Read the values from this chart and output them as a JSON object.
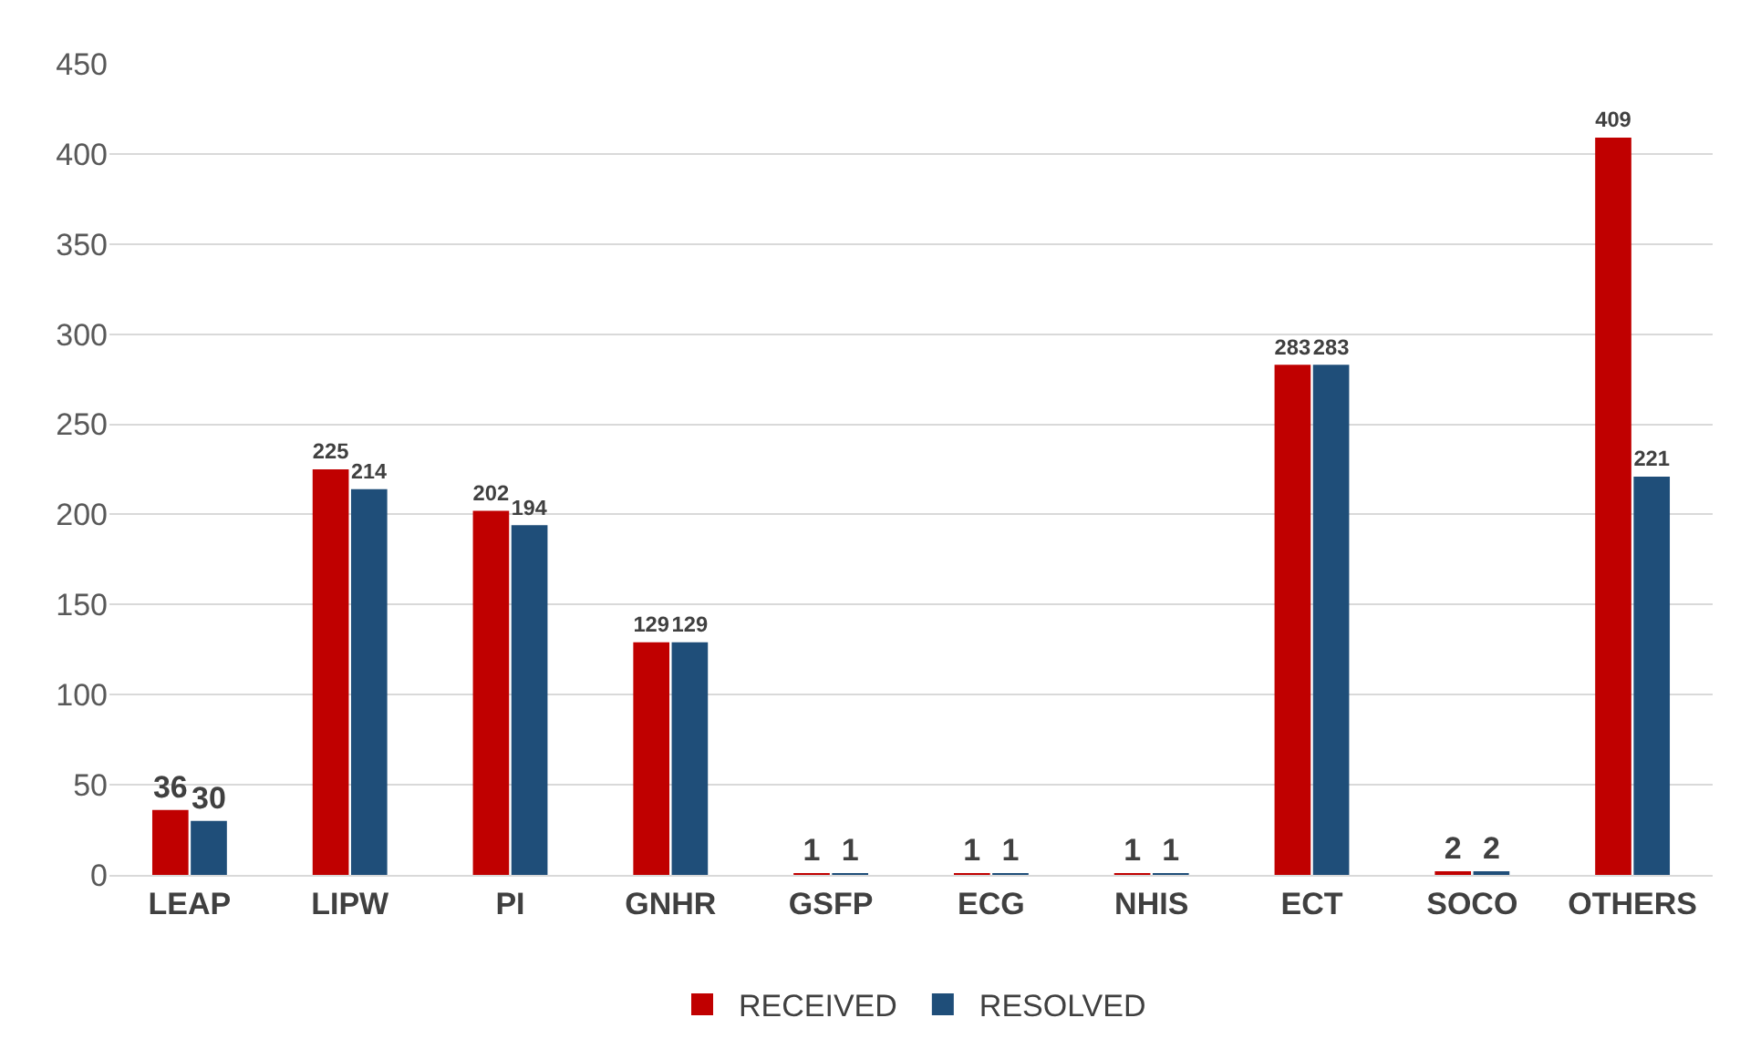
{
  "chart_data": {
    "type": "bar",
    "categories": [
      "LEAP",
      "LIPW",
      "PI",
      "GNHR",
      "GSFP",
      "ECG",
      "NHIS",
      "ECT",
      "SOCO",
      "OTHERS"
    ],
    "series": [
      {
        "name": "RECEIVED",
        "color": "#c00000",
        "values": [
          36,
          225,
          202,
          129,
          1,
          1,
          1,
          283,
          2,
          409
        ]
      },
      {
        "name": "RESOLVED",
        "color": "#1f4e79",
        "values": [
          30,
          214,
          194,
          129,
          1,
          1,
          1,
          283,
          2,
          221
        ]
      }
    ],
    "ylim": [
      0,
      450
    ],
    "yticks": [
      0,
      50,
      100,
      150,
      200,
      250,
      300,
      350,
      400,
      450
    ],
    "grid": "y",
    "legend": "bottom",
    "data_labels": true
  }
}
